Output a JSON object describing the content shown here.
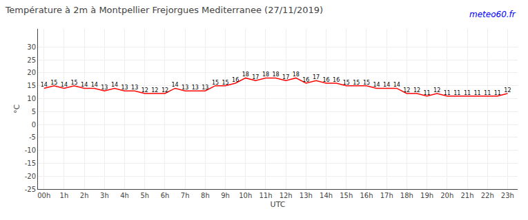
{
  "chart_data": {
    "type": "line",
    "title": "Température à 2m à Montpellier Frejorgues Mediterranee (27/11/2019)",
    "xlabel": "UTC",
    "ylabel": "°C",
    "annotations": [
      "meteo60.fr"
    ],
    "x": [
      0,
      0.5,
      1,
      1.5,
      2,
      2.5,
      3,
      3.5,
      4,
      4.5,
      5,
      5.5,
      6,
      6.5,
      7,
      7.5,
      8,
      8.5,
      9,
      9.5,
      10,
      10.5,
      11,
      11.5,
      12,
      12.5,
      13,
      13.5,
      14,
      14.5,
      15,
      15.5,
      16,
      16.5,
      17,
      17.5,
      18,
      18.5,
      19,
      19.5,
      20,
      20.5,
      21,
      21.5,
      22,
      22.5,
      23
    ],
    "values": [
      14,
      15,
      14,
      15,
      14,
      14,
      13,
      14,
      13,
      13,
      12,
      12,
      12,
      14,
      13,
      13,
      13,
      15,
      15,
      16,
      18,
      17,
      18,
      18,
      17,
      18,
      16,
      17,
      16,
      16,
      15,
      15,
      15,
      14,
      14,
      14,
      12,
      12,
      11,
      12,
      11,
      11,
      11,
      11,
      11,
      11,
      12
    ],
    "color": "#ff0000",
    "xlim": [
      -0.3,
      23.5
    ],
    "xticks": [
      {
        "value": 0,
        "label": "00h"
      },
      {
        "value": 1,
        "label": "1h"
      },
      {
        "value": 2,
        "label": "2h"
      },
      {
        "value": 3,
        "label": "3h"
      },
      {
        "value": 4,
        "label": "4h"
      },
      {
        "value": 5,
        "label": "5h"
      },
      {
        "value": 6,
        "label": "6h"
      },
      {
        "value": 7,
        "label": "7h"
      },
      {
        "value": 8,
        "label": "8h"
      },
      {
        "value": 9,
        "label": "9h"
      },
      {
        "value": 10,
        "label": "10h"
      },
      {
        "value": 11,
        "label": "11h"
      },
      {
        "value": 12,
        "label": "12h"
      },
      {
        "value": 13,
        "label": "13h"
      },
      {
        "value": 14,
        "label": "14h"
      },
      {
        "value": 15,
        "label": "15h"
      },
      {
        "value": 16,
        "label": "16h"
      },
      {
        "value": 17,
        "label": "17h"
      },
      {
        "value": 18,
        "label": "18h"
      },
      {
        "value": 19,
        "label": "19h"
      },
      {
        "value": 20,
        "label": "20h"
      },
      {
        "value": 21,
        "label": "21h"
      },
      {
        "value": 22,
        "label": "22h"
      },
      {
        "value": 23,
        "label": "23h"
      }
    ],
    "ylim": [
      -25,
      37
    ],
    "yticks": [
      -25,
      -20,
      -15,
      -10,
      -5,
      0,
      5,
      10,
      15,
      20,
      25,
      30
    ],
    "grid": true,
    "data_labels": true
  }
}
